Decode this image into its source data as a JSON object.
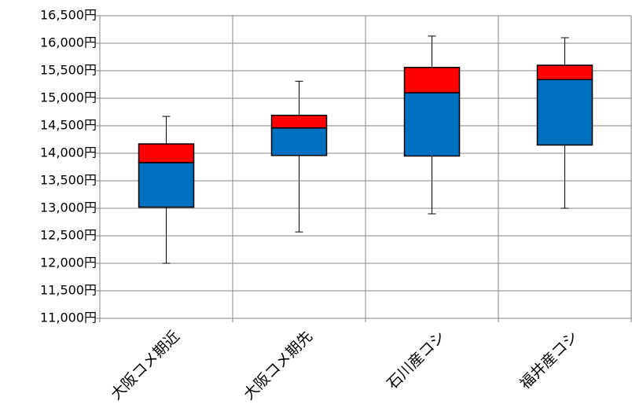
{
  "chart_data": {
    "type": "box",
    "categories": [
      "大阪コメ期近",
      "大阪コメ期先",
      "石川産コシ",
      "福井産コシ"
    ],
    "whisker_low": [
      12000,
      12570,
      12900,
      13000
    ],
    "q1": [
      13020,
      13960,
      13950,
      14150
    ],
    "median": [
      13830,
      14460,
      15100,
      15340
    ],
    "q3": [
      14170,
      14690,
      15560,
      15600
    ],
    "whisker_high": [
      14670,
      15310,
      16130,
      16100
    ],
    "lower_color": "#0070c0",
    "upper_color": "#ff0000",
    "ylim": [
      11000,
      16500
    ],
    "yticks": [
      {
        "value": 11000,
        "label": "11,000円"
      },
      {
        "value": 11500,
        "label": "11,500円"
      },
      {
        "value": 12000,
        "label": "12,000円"
      },
      {
        "value": 12500,
        "label": "12,500円"
      },
      {
        "value": 13000,
        "label": "13,000円"
      },
      {
        "value": 13500,
        "label": "13,500円"
      },
      {
        "value": 14000,
        "label": "14,000円"
      },
      {
        "value": 14500,
        "label": "14,500円"
      },
      {
        "value": 15000,
        "label": "15,000円"
      },
      {
        "value": 15500,
        "label": "15,500円"
      },
      {
        "value": 16000,
        "label": "16,000円"
      },
      {
        "value": 16500,
        "label": "16,500円"
      }
    ],
    "grid": true
  }
}
